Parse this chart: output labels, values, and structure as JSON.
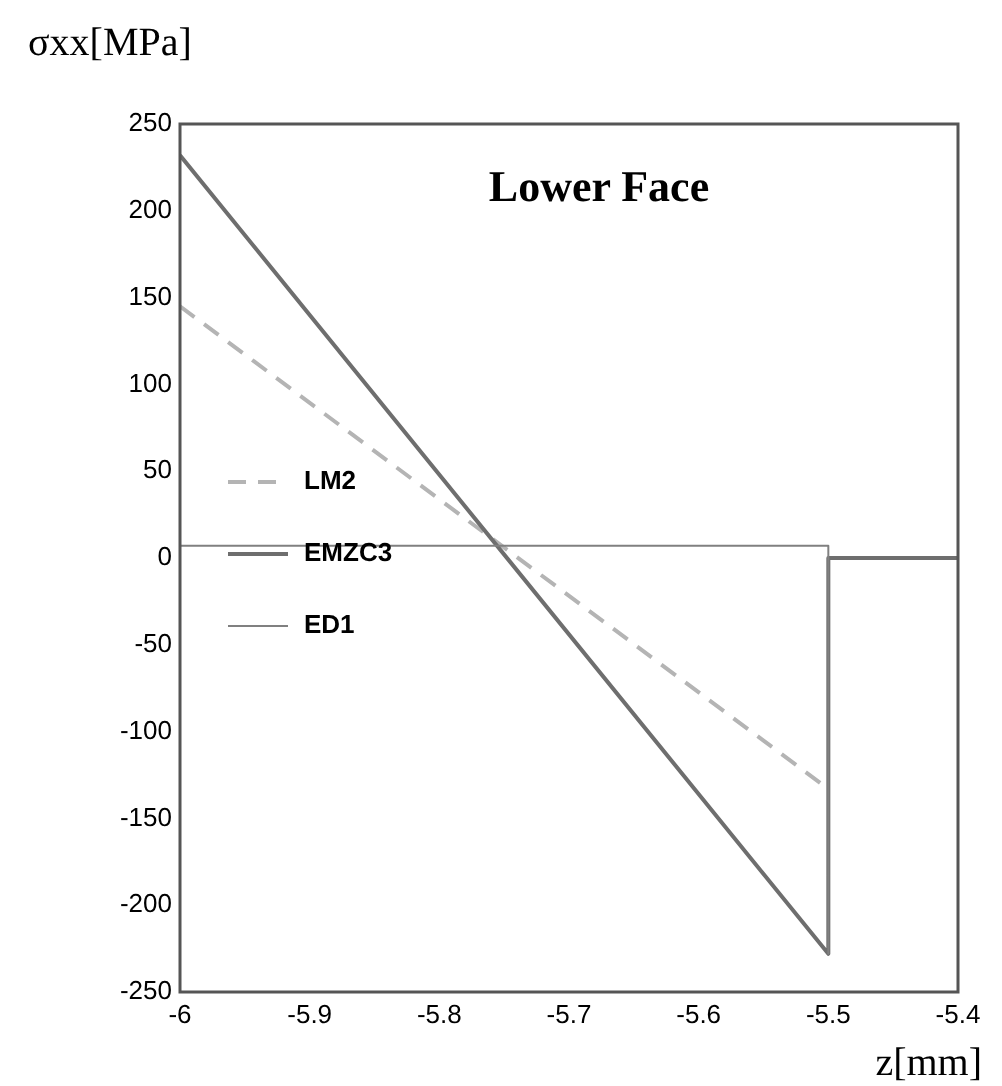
{
  "chart_data": {
    "type": "line",
    "title": "Lower Face",
    "xlabel": "z[mm]",
    "ylabel": "σxx[MPa]",
    "xlim": [
      -6,
      -5.4
    ],
    "xticks": [
      -6,
      -5.9,
      -5.8,
      -5.7,
      -5.6,
      -5.5,
      -5.4
    ],
    "ylim": [
      -250,
      250
    ],
    "yticks": [
      -250,
      -200,
      -150,
      -100,
      -50,
      0,
      50,
      100,
      150,
      200,
      250
    ],
    "grid": false,
    "legend": "left",
    "marker": "none",
    "series": [
      {
        "name": "LM2",
        "color": "#b4b4b4",
        "line_style": "dashed",
        "x": [
          -6,
          -5.5
        ],
        "values": [
          145,
          -133
        ]
      },
      {
        "name": "EMZC3",
        "color": "#6e6e6e",
        "line_style": "solid",
        "x": [
          -6,
          -5.5,
          -5.5,
          -5.4
        ],
        "values": [
          232,
          -228,
          0,
          0
        ]
      },
      {
        "name": "ED1",
        "color": "#808080",
        "line_style": "solid",
        "x": [
          -6,
          -5.5,
          -5.5
        ],
        "values": [
          7,
          7,
          -228
        ]
      }
    ]
  }
}
